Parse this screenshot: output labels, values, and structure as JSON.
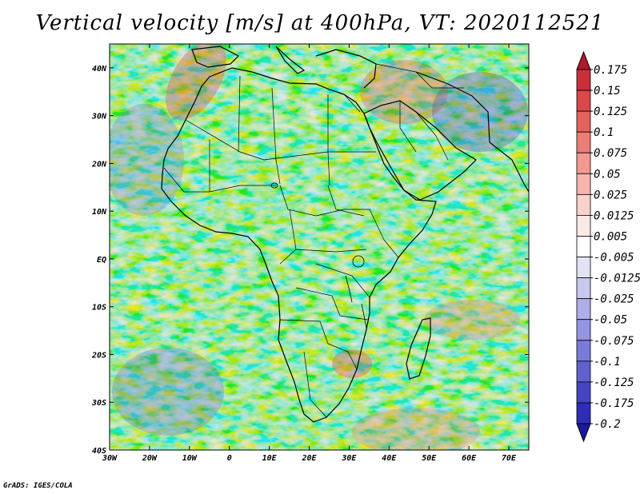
{
  "title": "Vertical velocity [m/s] at 400hPa, VT: 2020112521",
  "footer": "GrADS: IGES/COLA",
  "map": {
    "region": "Africa",
    "lon_range": [
      -30,
      75
    ],
    "lat_range": [
      -40,
      45
    ],
    "lat_ticks": [
      {
        "lat": 40,
        "label": "40N"
      },
      {
        "lat": 30,
        "label": "30N"
      },
      {
        "lat": 20,
        "label": "20N"
      },
      {
        "lat": 10,
        "label": "10N"
      },
      {
        "lat": 0,
        "label": "EQ"
      },
      {
        "lat": -10,
        "label": "10S"
      },
      {
        "lat": -20,
        "label": "20S"
      },
      {
        "lat": -30,
        "label": "30S"
      },
      {
        "lat": -40,
        "label": "40S"
      }
    ],
    "lon_ticks": [
      {
        "lon": -30,
        "label": "30W"
      },
      {
        "lon": -20,
        "label": "20W"
      },
      {
        "lon": -10,
        "label": "10W"
      },
      {
        "lon": 0,
        "label": "0"
      },
      {
        "lon": 10,
        "label": "10E"
      },
      {
        "lon": 20,
        "label": "20E"
      },
      {
        "lon": 30,
        "label": "30E"
      },
      {
        "lon": 40,
        "label": "40E"
      },
      {
        "lon": 50,
        "label": "50E"
      },
      {
        "lon": 60,
        "label": "60E"
      },
      {
        "lon": 70,
        "label": "70E"
      }
    ]
  },
  "colorbar": {
    "labels": [
      "0.175",
      "0.15",
      "0.125",
      "0.1",
      "0.075",
      "0.05",
      "0.025",
      "0.0125",
      "0.005",
      "-0.005",
      "-0.0125",
      "-0.025",
      "-0.05",
      "-0.075",
      "-0.1",
      "-0.125",
      "-0.175",
      "-0.2"
    ],
    "colors": [
      "#b2182b",
      "#c8303a",
      "#d9484a",
      "#e3625f",
      "#ec7d77",
      "#f29a92",
      "#f6b6ad",
      "#f9d2cb",
      "#fbe9e5",
      "#ffffff",
      "#e3e3f6",
      "#c8c8ef",
      "#aeaee8",
      "#9494e0",
      "#7a7ad8",
      "#6060cf",
      "#4545c4",
      "#2d2db5",
      "#1a1a9c"
    ]
  }
}
